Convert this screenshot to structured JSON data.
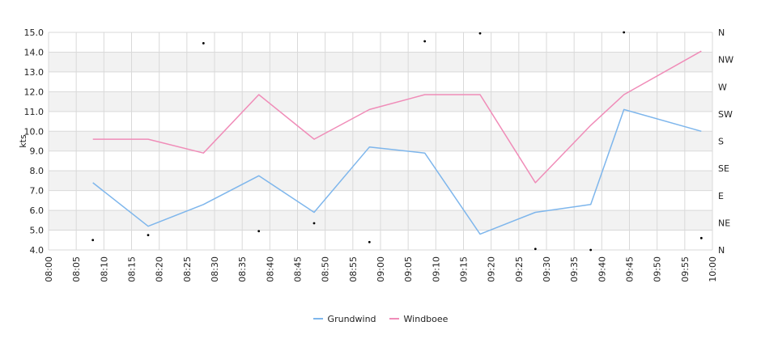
{
  "chart_data": {
    "type": "line",
    "ylabel": "kts",
    "y_left": {
      "min": 4,
      "max": 15,
      "ticks": [
        "4.0",
        "5.0",
        "6.0",
        "7.0",
        "8.0",
        "9.0",
        "10.0",
        "11.0",
        "12.0",
        "13.0",
        "14.0",
        "15.0"
      ]
    },
    "y_right_ticks": [
      "N",
      "NE",
      "E",
      "SE",
      "S",
      "SW",
      "W",
      "NW",
      "N"
    ],
    "x_ticks": [
      "08:00",
      "08:05",
      "08:10",
      "08:15",
      "08:20",
      "08:25",
      "08:30",
      "08:35",
      "08:40",
      "08:45",
      "08:50",
      "08:55",
      "09:00",
      "09:05",
      "09:10",
      "09:15",
      "09:20",
      "09:25",
      "09:30",
      "09:35",
      "09:40",
      "09:45",
      "09:50",
      "09:55",
      "10:00"
    ],
    "grid": true,
    "legend_position": "bottom",
    "series": [
      {
        "name": "Grundwind",
        "color": "#7eb6ec",
        "points": [
          [
            "08:08",
            7.4
          ],
          [
            "08:18",
            5.2
          ],
          [
            "08:28",
            6.3
          ],
          [
            "08:38",
            7.75
          ],
          [
            "08:48",
            5.9
          ],
          [
            "08:58",
            9.2
          ],
          [
            "09:08",
            8.9
          ],
          [
            "09:18",
            4.8
          ],
          [
            "09:28",
            5.9
          ],
          [
            "09:38",
            6.3
          ],
          [
            "09:44",
            11.1
          ],
          [
            "09:58",
            10.0
          ]
        ]
      },
      {
        "name": "Windboee",
        "color": "#f08cb8",
        "points": [
          [
            "08:08",
            9.6
          ],
          [
            "08:18",
            9.6
          ],
          [
            "08:28",
            8.9
          ],
          [
            "08:38",
            11.85
          ],
          [
            "08:48",
            9.6
          ],
          [
            "08:58",
            11.1
          ],
          [
            "09:08",
            11.85
          ],
          [
            "09:18",
            11.85
          ],
          [
            "09:28",
            7.4
          ],
          [
            "09:38",
            10.3
          ],
          [
            "09:44",
            11.85
          ],
          [
            "09:58",
            14.05
          ]
        ]
      }
    ],
    "direction_markers": [
      [
        "08:08",
        4.5
      ],
      [
        "08:18",
        4.75
      ],
      [
        "08:28",
        14.45
      ],
      [
        "08:38",
        4.95
      ],
      [
        "08:48",
        5.35
      ],
      [
        "08:58",
        4.4
      ],
      [
        "09:08",
        14.55
      ],
      [
        "09:18",
        14.95
      ],
      [
        "09:28",
        4.05
      ],
      [
        "09:38",
        4.0
      ],
      [
        "09:44",
        15.0
      ],
      [
        "09:58",
        4.6
      ]
    ]
  }
}
